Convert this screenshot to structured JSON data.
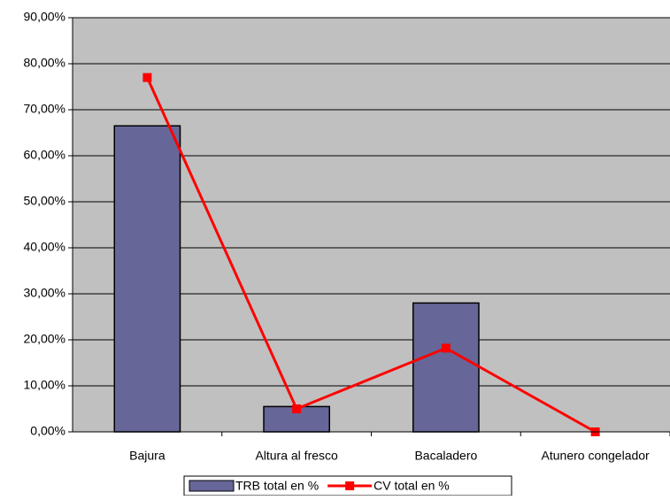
{
  "chart_data": {
    "type": "bar_line",
    "categories": [
      "Bajura",
      "Altura al fresco",
      "Bacaladero",
      "Atunero congelador"
    ],
    "series": [
      {
        "name": "TRB total en %",
        "type": "bar",
        "color": "#666699",
        "values": [
          66.5,
          5.5,
          28,
          0
        ]
      },
      {
        "name": "CV total en %",
        "type": "line",
        "color": "#ff0000",
        "values": [
          77,
          5,
          18.2,
          0
        ]
      }
    ],
    "ylim": [
      0,
      90
    ],
    "yticks": [
      {
        "value": 0,
        "label": "0,00%"
      },
      {
        "value": 10,
        "label": "10,00%"
      },
      {
        "value": 20,
        "label": "20,00%"
      },
      {
        "value": 30,
        "label": "30,00%"
      },
      {
        "value": 40,
        "label": "40,00%"
      },
      {
        "value": 50,
        "label": "50,00%"
      },
      {
        "value": 60,
        "label": "60,00%"
      },
      {
        "value": 70,
        "label": "70,00%"
      },
      {
        "value": 80,
        "label": "80,00%"
      },
      {
        "value": 90,
        "label": "90,00%"
      }
    ],
    "grid": true,
    "legend": "bottom"
  }
}
